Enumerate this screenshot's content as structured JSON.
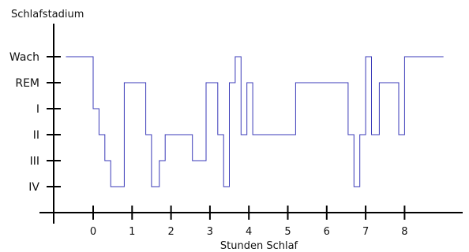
{
  "chart_data": {
    "type": "line",
    "step": true,
    "title": "",
    "ylabel": "Schlafstadium",
    "xlabel": "Stunden Schlaf",
    "x_ticks": [
      0,
      1,
      2,
      3,
      4,
      5,
      6,
      7,
      8
    ],
    "x_tick_labels": [
      "0",
      "1",
      "2",
      "3",
      "4",
      "5",
      "6",
      "7",
      "8"
    ],
    "xlim": [
      -1,
      9.4
    ],
    "y_categories": [
      "IV",
      "III",
      "II",
      "I",
      "REM",
      "Wach"
    ],
    "line_color": "#3a3ab8",
    "grid": false,
    "series": [
      {
        "x": [
          -0.7,
          0.0,
          0.0,
          0.15,
          0.15,
          0.3,
          0.3,
          0.45,
          0.45,
          0.8,
          0.8,
          1.35,
          1.35,
          1.5,
          1.5,
          1.7,
          1.7,
          1.85,
          1.85,
          2.55,
          2.55,
          2.9,
          2.9,
          3.2,
          3.2,
          3.35,
          3.35,
          3.5,
          3.5,
          3.65,
          3.65,
          3.8,
          3.8,
          3.95,
          3.95,
          4.1,
          4.1,
          4.2,
          4.2,
          5.2,
          5.2,
          6.55,
          6.55,
          6.7,
          6.7,
          6.85,
          6.85,
          7.0,
          7.0,
          7.15,
          7.15,
          7.35,
          7.35,
          7.85,
          7.85,
          8.0,
          8.0,
          9.0
        ],
        "y": [
          "Wach",
          "Wach",
          "I",
          "I",
          "II",
          "II",
          "III",
          "III",
          "IV",
          "IV",
          "REM",
          "REM",
          "II",
          "II",
          "IV",
          "IV",
          "III",
          "III",
          "II",
          "II",
          "III",
          "III",
          "REM",
          "REM",
          "II",
          "II",
          "IV",
          "IV",
          "REM",
          "REM",
          "Wach",
          "Wach",
          "II",
          "II",
          "REM",
          "REM",
          "II",
          "II",
          "II",
          "II",
          "REM",
          "REM",
          "II",
          "II",
          "IV",
          "IV",
          "II",
          "II",
          "Wach",
          "Wach",
          "II",
          "II",
          "REM",
          "REM",
          "II",
          "II",
          "Wach",
          "Wach"
        ]
      }
    ]
  }
}
